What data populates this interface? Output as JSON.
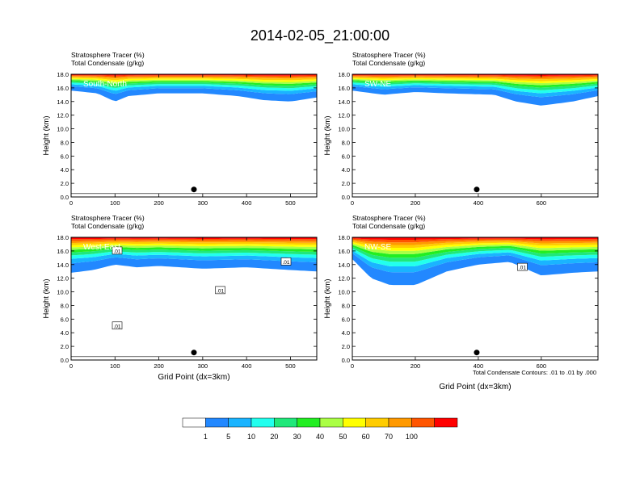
{
  "page": {
    "title": "2014-02-05_21:00:00"
  },
  "panel_header": {
    "line1": "Stratosphere Tracer   (%)",
    "line2": "Total Condensate   (g/kg)"
  },
  "y_axis_label": "Height (km)",
  "x_axis_label": "Grid Point (dx=3km)",
  "contour_note": "Total Condensate Contours: .01 to .01 by .000",
  "colors": {
    "levels": [
      "#ffffff",
      "#2288ff",
      "#1ab4ff",
      "#22ffee",
      "#20e87a",
      "#22ee22",
      "#aaff44",
      "#ffff00",
      "#ffcc00",
      "#ff9900",
      "#ff5500",
      "#ff0000"
    ],
    "contour": "#000000",
    "marker": "#000000"
  },
  "colorbar": {
    "labels": [
      "1",
      "5",
      "10",
      "20",
      "30",
      "40",
      "50",
      "60",
      "70",
      "100"
    ]
  },
  "chart_data": [
    {
      "type": "heatmap",
      "name": "South-North",
      "xlim": [
        0,
        560
      ],
      "ylim": [
        0,
        18
      ],
      "xticks": [
        0,
        100,
        200,
        300,
        400,
        500
      ],
      "yticks": [
        "0.0",
        "2.0",
        "4.0",
        "6.0",
        "8.0",
        "10.0",
        "12.0",
        "14.0",
        "16.0",
        "18.0"
      ],
      "marker": {
        "x": 280,
        "y": 1.1
      },
      "tracer_base_km": [
        [
          0,
          15.6
        ],
        [
          60,
          15.2
        ],
        [
          100,
          14.0
        ],
        [
          130,
          14.8
        ],
        [
          200,
          15.2
        ],
        [
          300,
          15.2
        ],
        [
          380,
          14.8
        ],
        [
          440,
          14.2
        ],
        [
          500,
          14.0
        ],
        [
          560,
          14.6
        ]
      ],
      "tracer_top_km": 18.0
    },
    {
      "type": "heatmap",
      "name": "SW-NE",
      "xlim": [
        0,
        780
      ],
      "ylim": [
        0,
        18
      ],
      "xticks": [
        0,
        200,
        400,
        600
      ],
      "yticks": [
        "0.0",
        "2.0",
        "4.0",
        "6.0",
        "8.0",
        "10.0",
        "12.0",
        "14.0",
        "16.0",
        "18.0"
      ],
      "marker": {
        "x": 395,
        "y": 1.1
      },
      "tracer_base_km": [
        [
          0,
          15.6
        ],
        [
          100,
          15.0
        ],
        [
          200,
          15.4
        ],
        [
          300,
          15.2
        ],
        [
          450,
          15.0
        ],
        [
          520,
          14.0
        ],
        [
          600,
          13.4
        ],
        [
          700,
          14.0
        ],
        [
          780,
          14.8
        ]
      ],
      "tracer_top_km": 18.0
    },
    {
      "type": "heatmap",
      "name": "West-East",
      "xlim": [
        0,
        560
      ],
      "ylim": [
        0,
        18
      ],
      "xticks": [
        0,
        100,
        200,
        300,
        400,
        500
      ],
      "yticks": [
        "0.0",
        "2.0",
        "4.0",
        "6.0",
        "8.0",
        "10.0",
        "12.0",
        "14.0",
        "16.0",
        "18.0"
      ],
      "marker": {
        "x": 280,
        "y": 1.1
      },
      "contour_labels": [
        {
          "text": ".01",
          "x": 105,
          "y": 5.0
        },
        {
          "text": ".01",
          "x": 105,
          "y": 16.0
        },
        {
          "text": ".01",
          "x": 340,
          "y": 10.2
        },
        {
          "text": ".01",
          "x": 490,
          "y": 14.4
        }
      ],
      "tracer_base_km": [
        [
          0,
          12.8
        ],
        [
          50,
          13.2
        ],
        [
          100,
          14.0
        ],
        [
          150,
          13.6
        ],
        [
          200,
          13.8
        ],
        [
          300,
          13.4
        ],
        [
          400,
          13.6
        ],
        [
          500,
          13.2
        ],
        [
          560,
          13.0
        ]
      ],
      "tracer_top_km": 18.0
    },
    {
      "type": "heatmap",
      "name": "NW-SE",
      "xlim": [
        0,
        780
      ],
      "ylim": [
        0,
        18
      ],
      "xticks": [
        0,
        200,
        400,
        600
      ],
      "yticks": [
        "0.0",
        "2.0",
        "4.0",
        "6.0",
        "8.0",
        "10.0",
        "12.0",
        "14.0",
        "16.0",
        "18.0"
      ],
      "marker": {
        "x": 395,
        "y": 1.1
      },
      "contour_labels": [
        {
          "text": ".01",
          "x": 540,
          "y": 13.6
        }
      ],
      "tracer_base_km": [
        [
          0,
          14.8
        ],
        [
          60,
          12.0
        ],
        [
          120,
          11.0
        ],
        [
          200,
          11.0
        ],
        [
          300,
          13.0
        ],
        [
          400,
          14.0
        ],
        [
          500,
          14.4
        ],
        [
          600,
          12.4
        ],
        [
          700,
          12.8
        ],
        [
          780,
          13.0
        ]
      ],
      "tracer_top_km": 18.0
    }
  ]
}
